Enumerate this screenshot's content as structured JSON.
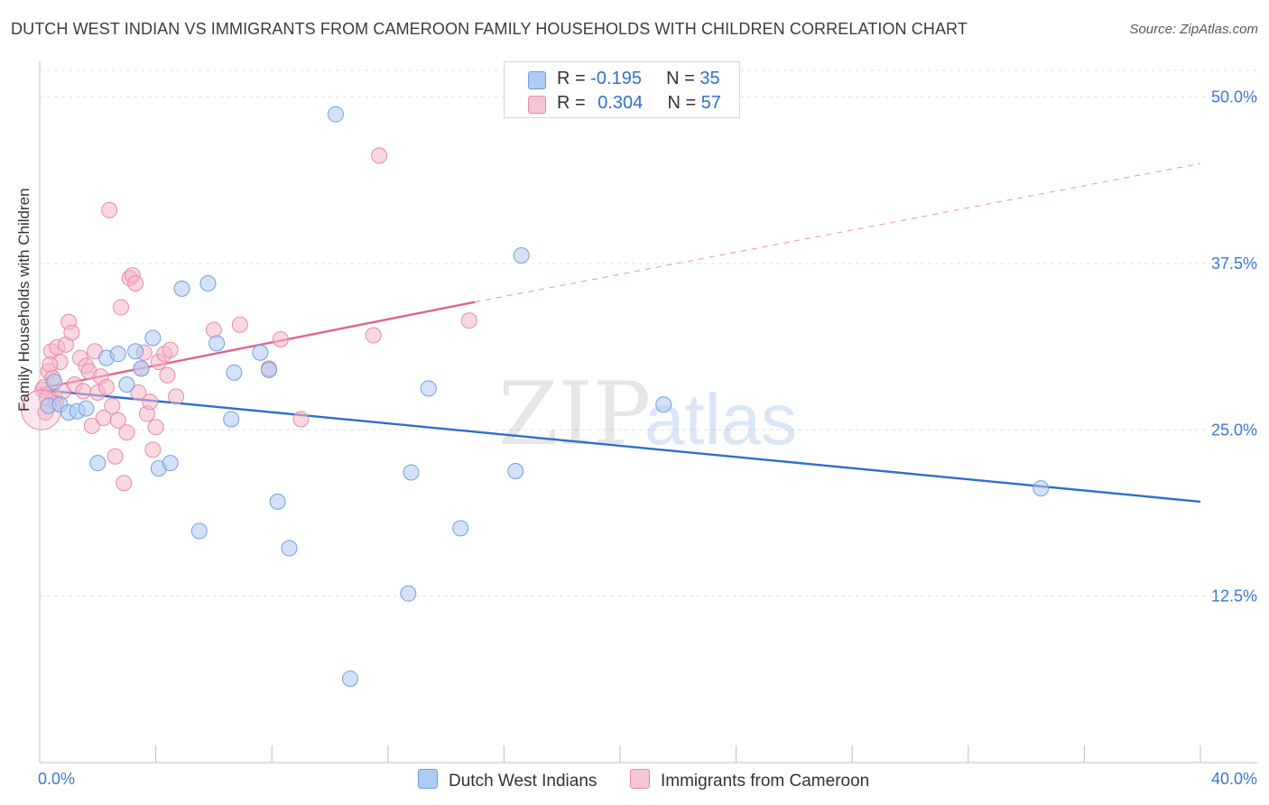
{
  "title": "DUTCH WEST INDIAN VS IMMIGRANTS FROM CAMEROON FAMILY HOUSEHOLDS WITH CHILDREN CORRELATION CHART",
  "source": "Source: ZipAtlas.com",
  "watermark": {
    "zip": "ZIP",
    "atlas": "atlas"
  },
  "legend": {
    "row1": {
      "r_label": "R = ",
      "r_value": "-0.195",
      "n_label": "N = ",
      "n_value": "35"
    },
    "row2": {
      "r_label": "R = ",
      "r_value": "0.304",
      "n_label": "N = ",
      "n_value": "57"
    }
  },
  "colors": {
    "blue_fill": "#aecbf3",
    "blue_stroke": "#6f9fe0",
    "blue_line": "#2d6fcf",
    "pink_fill": "#f6b8cb",
    "pink_stroke": "#e78aa8",
    "pink_line": "#e0628f",
    "tick_label": "#3a78d0",
    "grid": "#e2e2e2"
  },
  "chart_data": {
    "type": "scatter",
    "title": "DUTCH WEST INDIAN VS IMMIGRANTS FROM CAMEROON FAMILY HOUSEHOLDS WITH CHILDREN CORRELATION CHART",
    "xlabel": "",
    "ylabel": "Family Households with Children",
    "xlim": [
      0,
      40
    ],
    "ylim": [
      0,
      52
    ],
    "x_tick_labels": [
      "0.0%",
      "40.0%"
    ],
    "y_ticks": [
      12.5,
      25.0,
      37.5,
      50.0
    ],
    "y_tick_labels": [
      "12.5%",
      "25.0%",
      "37.5%",
      "50.0%"
    ],
    "legend_position": "bottom",
    "series": [
      {
        "name": "Dutch West Indians",
        "color": "blue",
        "r": -0.195,
        "n": 35,
        "points": [
          [
            0.3,
            26.8
          ],
          [
            0.5,
            28.6
          ],
          [
            0.7,
            26.9
          ],
          [
            1.0,
            26.3
          ],
          [
            1.3,
            26.4
          ],
          [
            1.6,
            26.6
          ],
          [
            2.0,
            22.5
          ],
          [
            2.3,
            30.4
          ],
          [
            2.7,
            30.7
          ],
          [
            3.0,
            28.4
          ],
          [
            3.3,
            30.9
          ],
          [
            3.5,
            29.6
          ],
          [
            3.9,
            31.9
          ],
          [
            4.1,
            22.1
          ],
          [
            4.5,
            22.5
          ],
          [
            4.9,
            35.6
          ],
          [
            5.5,
            17.4
          ],
          [
            5.8,
            36.0
          ],
          [
            6.1,
            31.5
          ],
          [
            6.6,
            25.8
          ],
          [
            6.7,
            29.3
          ],
          [
            7.6,
            30.8
          ],
          [
            7.9,
            29.5
          ],
          [
            8.2,
            19.6
          ],
          [
            8.6,
            16.1
          ],
          [
            10.2,
            48.7
          ],
          [
            10.7,
            6.3
          ],
          [
            12.7,
            12.7
          ],
          [
            12.8,
            21.8
          ],
          [
            13.4,
            28.1
          ],
          [
            14.5,
            17.6
          ],
          [
            16.4,
            21.9
          ],
          [
            16.6,
            38.1
          ],
          [
            21.5,
            26.9
          ],
          [
            34.5,
            20.6
          ]
        ]
      },
      {
        "name": "Immigrants from Cameroon",
        "color": "pink",
        "r": 0.304,
        "n": 57,
        "points": [
          [
            0.1,
            28.0
          ],
          [
            0.2,
            26.3
          ],
          [
            0.3,
            29.4
          ],
          [
            0.4,
            30.9
          ],
          [
            0.5,
            27.5
          ],
          [
            0.6,
            31.2
          ],
          [
            0.7,
            30.1
          ],
          [
            0.8,
            27.9
          ],
          [
            0.9,
            31.4
          ],
          [
            1.0,
            33.1
          ],
          [
            1.1,
            32.3
          ],
          [
            1.2,
            28.4
          ],
          [
            1.4,
            30.4
          ],
          [
            1.5,
            27.9
          ],
          [
            1.6,
            29.8
          ],
          [
            1.7,
            29.4
          ],
          [
            1.8,
            25.3
          ],
          [
            1.9,
            30.9
          ],
          [
            2.0,
            27.8
          ],
          [
            2.1,
            29.0
          ],
          [
            2.2,
            25.9
          ],
          [
            2.3,
            28.2
          ],
          [
            2.4,
            41.5
          ],
          [
            2.5,
            26.8
          ],
          [
            2.6,
            23.0
          ],
          [
            2.7,
            25.7
          ],
          [
            2.8,
            34.2
          ],
          [
            2.9,
            21.0
          ],
          [
            3.0,
            24.8
          ],
          [
            3.1,
            36.4
          ],
          [
            3.2,
            36.6
          ],
          [
            3.3,
            36.0
          ],
          [
            3.4,
            27.8
          ],
          [
            3.5,
            29.6
          ],
          [
            3.6,
            30.8
          ],
          [
            3.7,
            26.2
          ],
          [
            3.8,
            27.1
          ],
          [
            3.9,
            23.5
          ],
          [
            4.0,
            25.2
          ],
          [
            4.1,
            30.1
          ],
          [
            4.3,
            30.7
          ],
          [
            4.4,
            29.1
          ],
          [
            4.5,
            31.0
          ],
          [
            4.7,
            27.5
          ],
          [
            6.0,
            32.5
          ],
          [
            6.9,
            32.9
          ],
          [
            7.9,
            29.6
          ],
          [
            8.3,
            31.8
          ],
          [
            9.0,
            25.8
          ],
          [
            11.5,
            32.1
          ],
          [
            11.7,
            45.6
          ],
          [
            14.8,
            33.2
          ],
          [
            0.15,
            28.2
          ],
          [
            0.25,
            27.4
          ],
          [
            0.35,
            29.9
          ],
          [
            0.45,
            28.9
          ],
          [
            0.55,
            27.0
          ]
        ]
      }
    ],
    "trendlines": [
      {
        "series": "Dutch West Indians",
        "x": [
          0,
          40
        ],
        "y": [
          28.0,
          19.6
        ],
        "style": "solid"
      },
      {
        "series": "Immigrants from Cameroon",
        "x": [
          0,
          15.0
        ],
        "y": [
          28.1,
          34.6
        ],
        "style": "solid"
      },
      {
        "series": "Immigrants from Cameroon",
        "x": [
          15.0,
          40
        ],
        "y": [
          34.6,
          45.0
        ],
        "style": "dashed"
      }
    ]
  }
}
